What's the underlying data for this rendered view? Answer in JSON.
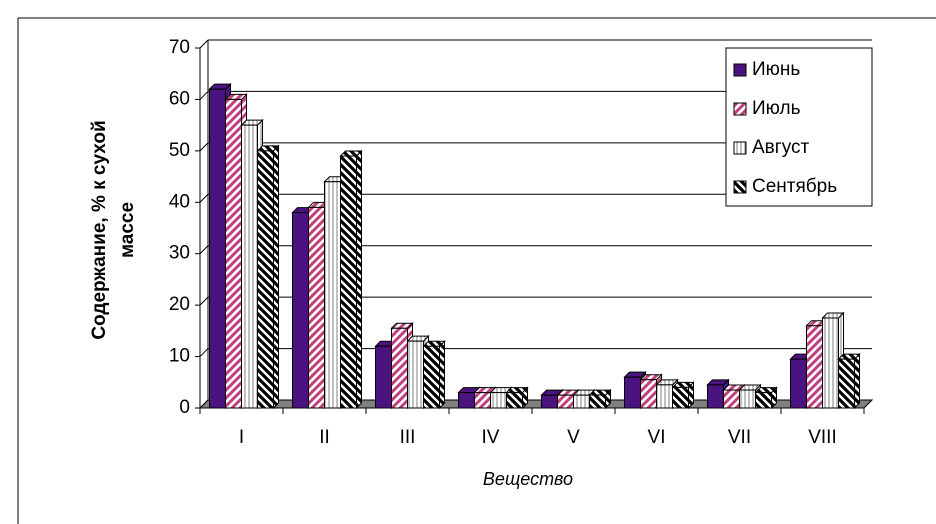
{
  "chart_data": {
    "type": "bar",
    "xlabel": "Вещество",
    "ylabel": [
      "Содержание, % к сухой",
      "массе"
    ],
    "categories": [
      "I",
      "II",
      "III",
      "IV",
      "V",
      "VI",
      "VII",
      "VIII"
    ],
    "series": [
      {
        "name": "Июнь",
        "color": "#4b1380",
        "pattern": "solid",
        "values": [
          62,
          38,
          12,
          3,
          2.5,
          6,
          4.5,
          9.5
        ]
      },
      {
        "name": "Июль",
        "color": "#c2407c",
        "pattern": "diagonal",
        "values": [
          60,
          39,
          15.5,
          3,
          2.5,
          5.5,
          3.5,
          16
        ]
      },
      {
        "name": "Август",
        "color": "#808080",
        "pattern": "vertical",
        "values": [
          55,
          44,
          13,
          3,
          2.5,
          4.5,
          3.5,
          17.5
        ]
      },
      {
        "name": "Сентябрь",
        "color": "#000000",
        "pattern": "antidiagonal",
        "values": [
          50,
          49,
          12,
          3,
          2.5,
          4,
          3,
          9.5
        ]
      }
    ],
    "ylim": [
      0,
      70
    ],
    "yticks": [
      0,
      10,
      20,
      30,
      40,
      50,
      60,
      70
    ],
    "grid": true,
    "legend": "top-right"
  }
}
